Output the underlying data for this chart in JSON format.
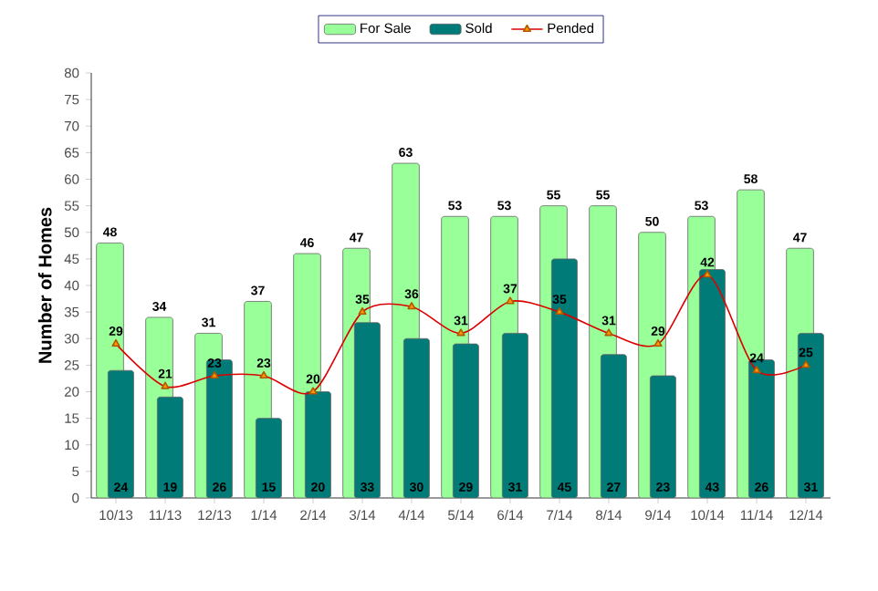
{
  "chart_data": {
    "type": "bar",
    "ylabel": "Number of Homes",
    "categories": [
      "10/13",
      "11/13",
      "12/13",
      "1/14",
      "2/14",
      "3/14",
      "4/14",
      "5/14",
      "6/14",
      "7/14",
      "8/14",
      "9/14",
      "10/14",
      "11/14",
      "12/14"
    ],
    "series": [
      {
        "name": "For Sale",
        "color": "#99ff99",
        "values": [
          48,
          34,
          31,
          37,
          46,
          47,
          63,
          53,
          53,
          55,
          55,
          50,
          53,
          58,
          47
        ]
      },
      {
        "name": "Sold",
        "color": "#007b78",
        "values": [
          24,
          19,
          26,
          15,
          20,
          33,
          30,
          29,
          31,
          45,
          27,
          23,
          43,
          26,
          31
        ]
      },
      {
        "name": "Pended",
        "type": "line",
        "color": "#dd0000",
        "marker": "triangle",
        "values": [
          29,
          21,
          23,
          23,
          20,
          35,
          36,
          31,
          37,
          35,
          31,
          29,
          42,
          24,
          25
        ]
      }
    ],
    "ylim": [
      0,
      80
    ],
    "yticks": [
      0,
      5,
      10,
      15,
      20,
      25,
      30,
      35,
      40,
      45,
      50,
      55,
      60,
      65,
      70,
      75,
      80
    ],
    "data_labels": true,
    "grid": false,
    "legend": "top"
  }
}
